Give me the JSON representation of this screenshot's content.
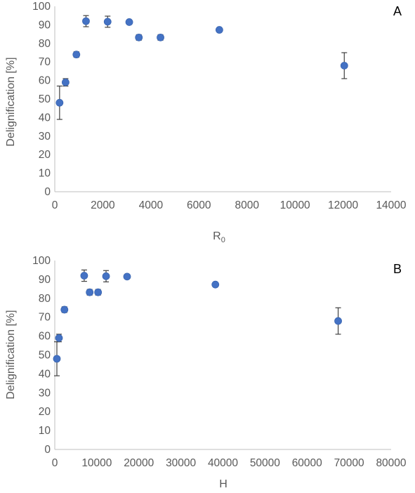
{
  "chart_data": [
    {
      "type": "scatter",
      "panel_label": "A",
      "xlabel_main": "R",
      "xlabel_sub": "0",
      "ylabel": "Delignification [%]",
      "xlim": [
        0,
        14000
      ],
      "ylim": [
        0,
        100
      ],
      "x_ticks": [
        "0",
        "2000",
        "4000",
        "6000",
        "8000",
        "10000",
        "12000",
        "14000"
      ],
      "y_ticks": [
        "0",
        "10",
        "20",
        "30",
        "40",
        "50",
        "60",
        "70",
        "80",
        "90",
        "100"
      ],
      "x_tick_values": [
        0,
        2000,
        4000,
        6000,
        8000,
        10000,
        12000,
        14000
      ],
      "y_tick_values": [
        0,
        10,
        20,
        30,
        40,
        50,
        60,
        70,
        80,
        90,
        100
      ],
      "grid": false,
      "marker_color": "#4472C4",
      "points": [
        {
          "x": 200,
          "y": 48,
          "err": 9
        },
        {
          "x": 450,
          "y": 59,
          "err": 2
        },
        {
          "x": 900,
          "y": 74,
          "err": 1.5
        },
        {
          "x": 1300,
          "y": 92,
          "err": 3
        },
        {
          "x": 2200,
          "y": 91.7,
          "err": 3
        },
        {
          "x": 3100,
          "y": 91.5,
          "err": 0
        },
        {
          "x": 3500,
          "y": 83.2,
          "err": 1.5
        },
        {
          "x": 4400,
          "y": 83.2,
          "err": 1.5
        },
        {
          "x": 6850,
          "y": 87.3,
          "err": 0
        },
        {
          "x": 12050,
          "y": 68,
          "err": 7
        }
      ]
    },
    {
      "type": "scatter",
      "panel_label": "B",
      "xlabel_main": "H",
      "xlabel_sub": "",
      "ylabel": "Delignification [%]",
      "xlim": [
        0,
        80000
      ],
      "ylim": [
        0,
        100
      ],
      "x_ticks": [
        "0",
        "10000",
        "20000",
        "30000",
        "40000",
        "50000",
        "60000",
        "70000",
        "80000"
      ],
      "y_ticks": [
        "0",
        "10",
        "20",
        "30",
        "40",
        "50",
        "60",
        "70",
        "80",
        "90",
        "100"
      ],
      "x_tick_values": [
        0,
        10000,
        20000,
        30000,
        40000,
        50000,
        60000,
        70000,
        80000
      ],
      "y_tick_values": [
        0,
        10,
        20,
        30,
        40,
        50,
        60,
        70,
        80,
        90,
        100
      ],
      "grid": false,
      "marker_color": "#4472C4",
      "points": [
        {
          "x": 500,
          "y": 48,
          "err": 9
        },
        {
          "x": 1000,
          "y": 59,
          "err": 2
        },
        {
          "x": 2300,
          "y": 74,
          "err": 1.5
        },
        {
          "x": 7000,
          "y": 92,
          "err": 3
        },
        {
          "x": 8300,
          "y": 83.2,
          "err": 1.5
        },
        {
          "x": 10300,
          "y": 83.2,
          "err": 1.5
        },
        {
          "x": 12200,
          "y": 91.7,
          "err": 3
        },
        {
          "x": 17200,
          "y": 91.5,
          "err": 0
        },
        {
          "x": 38200,
          "y": 87.3,
          "err": 0
        },
        {
          "x": 67400,
          "y": 68,
          "err": 7
        }
      ]
    }
  ]
}
